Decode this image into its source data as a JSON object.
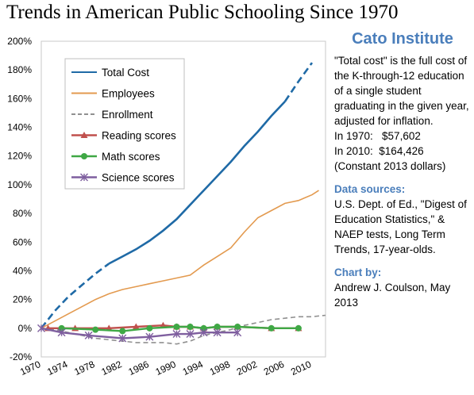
{
  "title": "Trends in American Public Schooling Since 1970",
  "side_panel": {
    "brand": "Cato Institute",
    "description": "\"Total cost\" is the full cost of the K-through-12 education of a single student graduating in the given year, adjusted for inflation.",
    "cost_1970": "In 1970:   $57,602",
    "cost_2010": "In 2010:  $164,426",
    "constant_dollars": "(Constant 2013 dollars)",
    "sources_header": "Data sources:",
    "sources_text": "U.S. Dept. of Ed., \"Digest of Education Statistics,\" & NAEP tests, Long Term Trends, 17-year-olds.",
    "chart_by_header": "Chart by:",
    "chart_by_text": "Andrew J. Coulson, May 2013"
  },
  "chart_data": {
    "type": "line",
    "xlim": [
      1970,
      2012
    ],
    "ylim": [
      -20,
      200
    ],
    "x_ticks": [
      1970,
      1974,
      1978,
      1982,
      1986,
      1990,
      1994,
      1998,
      2002,
      2006,
      2010
    ],
    "y_ticks": [
      -20,
      0,
      20,
      40,
      60,
      80,
      100,
      120,
      140,
      160,
      180,
      200
    ],
    "y_tick_labels": [
      "-20%",
      "0%",
      "20%",
      "40%",
      "60%",
      "80%",
      "100%",
      "120%",
      "140%",
      "160%",
      "180%",
      "200%"
    ],
    "grid": "none",
    "legend_placement": "top-left",
    "series": [
      {
        "name": "Total Cost",
        "color": "#1f6aa6",
        "style": "solid-with-dashed-ends",
        "marker": "none",
        "dashed_before": 1980,
        "dashed_after": 2006,
        "points": [
          [
            1970,
            0
          ],
          [
            1972,
            12
          ],
          [
            1974,
            22
          ],
          [
            1976,
            30
          ],
          [
            1978,
            38
          ],
          [
            1980,
            45
          ],
          [
            1982,
            50
          ],
          [
            1984,
            55
          ],
          [
            1986,
            61
          ],
          [
            1988,
            68
          ],
          [
            1990,
            76
          ],
          [
            1992,
            86
          ],
          [
            1994,
            96
          ],
          [
            1996,
            106
          ],
          [
            1998,
            116
          ],
          [
            2000,
            127
          ],
          [
            2002,
            137
          ],
          [
            2004,
            148
          ],
          [
            2006,
            158
          ],
          [
            2008,
            172
          ],
          [
            2010,
            185
          ]
        ]
      },
      {
        "name": "Employees",
        "color": "#e39a4f",
        "style": "solid",
        "marker": "none",
        "points": [
          [
            1970,
            0
          ],
          [
            1972,
            5
          ],
          [
            1974,
            10
          ],
          [
            1976,
            15
          ],
          [
            1978,
            20
          ],
          [
            1980,
            24
          ],
          [
            1982,
            27
          ],
          [
            1984,
            29
          ],
          [
            1986,
            31
          ],
          [
            1988,
            33
          ],
          [
            1990,
            35
          ],
          [
            1992,
            37
          ],
          [
            1994,
            44
          ],
          [
            1996,
            50
          ],
          [
            1998,
            56
          ],
          [
            2000,
            67
          ],
          [
            2002,
            77
          ],
          [
            2004,
            82
          ],
          [
            2006,
            87
          ],
          [
            2008,
            89
          ],
          [
            2010,
            93
          ],
          [
            2011,
            96
          ]
        ]
      },
      {
        "name": "Enrollment",
        "color": "#909090",
        "style": "dashed",
        "marker": "none",
        "points": [
          [
            1970,
            0
          ],
          [
            1972,
            -1
          ],
          [
            1974,
            -3
          ],
          [
            1976,
            -5
          ],
          [
            1978,
            -7
          ],
          [
            1980,
            -8
          ],
          [
            1982,
            -9
          ],
          [
            1984,
            -10
          ],
          [
            1986,
            -10
          ],
          [
            1988,
            -10
          ],
          [
            1990,
            -11
          ],
          [
            1992,
            -9
          ],
          [
            1994,
            -5
          ],
          [
            1996,
            -3
          ],
          [
            1998,
            -1
          ],
          [
            2000,
            2
          ],
          [
            2002,
            4
          ],
          [
            2004,
            6
          ],
          [
            2006,
            7
          ],
          [
            2008,
            8
          ],
          [
            2010,
            8
          ],
          [
            2012,
            9
          ]
        ]
      },
      {
        "name": "Reading scores",
        "color": "#c0504d",
        "style": "solid",
        "marker": "triangle",
        "points": [
          [
            1971,
            0
          ],
          [
            1975,
            0
          ],
          [
            1980,
            0
          ],
          [
            1984,
            1
          ],
          [
            1988,
            2
          ],
          [
            1990,
            1
          ],
          [
            1992,
            1
          ],
          [
            1994,
            0
          ],
          [
            1996,
            1
          ],
          [
            1999,
            1
          ],
          [
            2004,
            0
          ],
          [
            2008,
            0
          ]
        ]
      },
      {
        "name": "Math scores",
        "color": "#3fa845",
        "style": "solid",
        "marker": "circle",
        "points": [
          [
            1973,
            0
          ],
          [
            1978,
            -1
          ],
          [
            1982,
            -2
          ],
          [
            1986,
            0
          ],
          [
            1990,
            1
          ],
          [
            1992,
            1
          ],
          [
            1994,
            0
          ],
          [
            1996,
            1
          ],
          [
            1999,
            1
          ],
          [
            2004,
            0
          ],
          [
            2008,
            0
          ]
        ]
      },
      {
        "name": "Science scores",
        "color": "#7f5f9f",
        "style": "solid",
        "marker": "asterisk",
        "points": [
          [
            1970,
            0
          ],
          [
            1973,
            -3
          ],
          [
            1977,
            -5
          ],
          [
            1982,
            -7
          ],
          [
            1986,
            -6
          ],
          [
            1990,
            -4
          ],
          [
            1992,
            -4
          ],
          [
            1994,
            -3
          ],
          [
            1996,
            -3
          ],
          [
            1999,
            -3
          ]
        ]
      }
    ]
  }
}
